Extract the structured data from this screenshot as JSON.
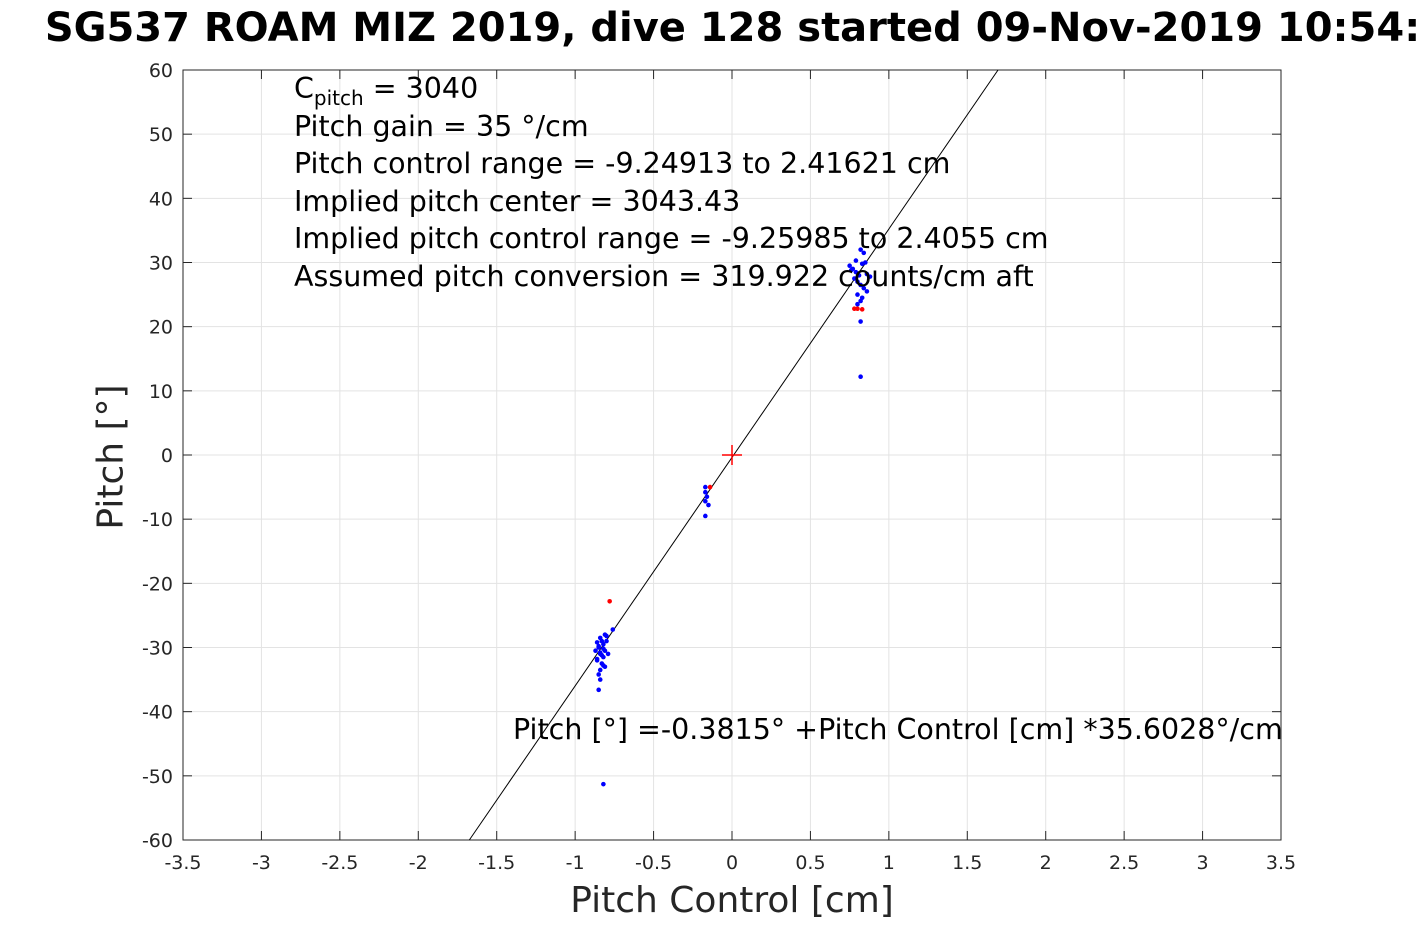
{
  "figure": {
    "title": "SG537 ROAM MIZ 2019, dive 128 started 09-Nov-2019 10:54:",
    "stats": {
      "c_pitch_symbol": "C",
      "c_pitch_subscript": "pitch",
      "c_pitch_value": " = 3040",
      "lines": [
        "Pitch gain = 35 °/cm",
        "Pitch control range = -9.24913 to 2.41621 cm",
        "Implied pitch center = 3043.43",
        "Implied pitch control range = -9.25985 to 2.4055 cm",
        "Assumed pitch conversion = 319.922 counts/cm aft"
      ]
    },
    "fit_equation": "Pitch [°] =-0.3815° +Pitch Control [cm] *35.6028°/cm"
  },
  "chart_data": {
    "type": "scatter",
    "xlabel": "Pitch Control [cm]",
    "ylabel": "Pitch [°]",
    "xlim": [
      -3.5,
      3.5
    ],
    "ylim": [
      -60,
      60
    ],
    "x_ticks": [
      -3.5,
      -3,
      -2.5,
      -2,
      -1.5,
      -1,
      -0.5,
      0,
      0.5,
      1,
      1.5,
      2,
      2.5,
      3,
      3.5
    ],
    "y_ticks": [
      -60,
      -50,
      -40,
      -30,
      -20,
      -10,
      0,
      10,
      20,
      30,
      40,
      50,
      60
    ],
    "x_tick_labels": [
      "-3.5",
      "-3",
      "-2.5",
      "-2",
      "-1.5",
      "-1",
      "-0.5",
      "0",
      "0.5",
      "1",
      "1.5",
      "2",
      "2.5",
      "3",
      "3.5"
    ],
    "y_tick_labels": [
      "-60",
      "-50",
      "-40",
      "-30",
      "-20",
      "-10",
      "0",
      "10",
      "20",
      "30",
      "40",
      "50",
      "60"
    ],
    "grid": true,
    "series": [
      {
        "color": "#0000ff",
        "marker": "dot",
        "points": [
          [
            -0.84,
            -28.5
          ],
          [
            -0.83,
            -29.0
          ],
          [
            -0.82,
            -29.5
          ],
          [
            -0.85,
            -30.0
          ],
          [
            -0.81,
            -30.5
          ],
          [
            -0.84,
            -31.0
          ],
          [
            -0.82,
            -31.5
          ],
          [
            -0.86,
            -32.0
          ],
          [
            -0.83,
            -32.5
          ],
          [
            -0.81,
            -33.0
          ],
          [
            -0.85,
            -29.8
          ],
          [
            -0.82,
            -30.2
          ],
          [
            -0.84,
            -30.8
          ],
          [
            -0.83,
            -31.2
          ],
          [
            -0.8,
            -28.2
          ],
          [
            -0.86,
            -31.8
          ],
          [
            -0.82,
            -32.8
          ],
          [
            -0.84,
            -33.5
          ],
          [
            -0.85,
            -34.2
          ],
          [
            -0.84,
            -35.0
          ],
          [
            -0.85,
            -36.6
          ],
          [
            -0.8,
            -29.0
          ],
          [
            -0.79,
            -31.0
          ],
          [
            -0.81,
            -28.0
          ],
          [
            -0.76,
            -27.2
          ],
          [
            -0.87,
            -30.5
          ],
          [
            -0.86,
            -29.2
          ],
          [
            -0.82,
            -51.3
          ],
          [
            -0.17,
            -5.0
          ],
          [
            -0.17,
            -5.8
          ],
          [
            -0.16,
            -6.5
          ],
          [
            -0.17,
            -7.2
          ],
          [
            -0.15,
            -7.8
          ],
          [
            -0.17,
            -9.5
          ],
          [
            0.75,
            29.5
          ],
          [
            0.77,
            29.0
          ],
          [
            0.79,
            28.5
          ],
          [
            0.81,
            28.0
          ],
          [
            0.83,
            29.8
          ],
          [
            0.85,
            30.0
          ],
          [
            0.78,
            27.5
          ],
          [
            0.8,
            27.0
          ],
          [
            0.82,
            26.5
          ],
          [
            0.84,
            26.0
          ],
          [
            0.86,
            25.5
          ],
          [
            0.8,
            25.0
          ],
          [
            0.83,
            24.5
          ],
          [
            0.82,
            24.0
          ],
          [
            0.79,
            30.3
          ],
          [
            0.86,
            28.2
          ],
          [
            0.88,
            27.8
          ],
          [
            0.76,
            28.8
          ],
          [
            0.84,
            31.5
          ],
          [
            0.82,
            32.0
          ],
          [
            0.8,
            23.5
          ],
          [
            0.82,
            20.8
          ],
          [
            0.82,
            12.2
          ]
        ]
      },
      {
        "color": "#ff0000",
        "marker": "dot",
        "points": [
          [
            -0.78,
            -22.8
          ],
          [
            -0.14,
            -5.0
          ],
          [
            0.78,
            22.8
          ],
          [
            0.8,
            22.8
          ],
          [
            0.83,
            22.7
          ]
        ]
      }
    ],
    "fit_line": {
      "intercept": -0.3815,
      "slope": 35.6028,
      "color": "#000000"
    },
    "center_marker": {
      "x": 0,
      "y": 0,
      "color": "#ff0000",
      "shape": "plus"
    }
  }
}
